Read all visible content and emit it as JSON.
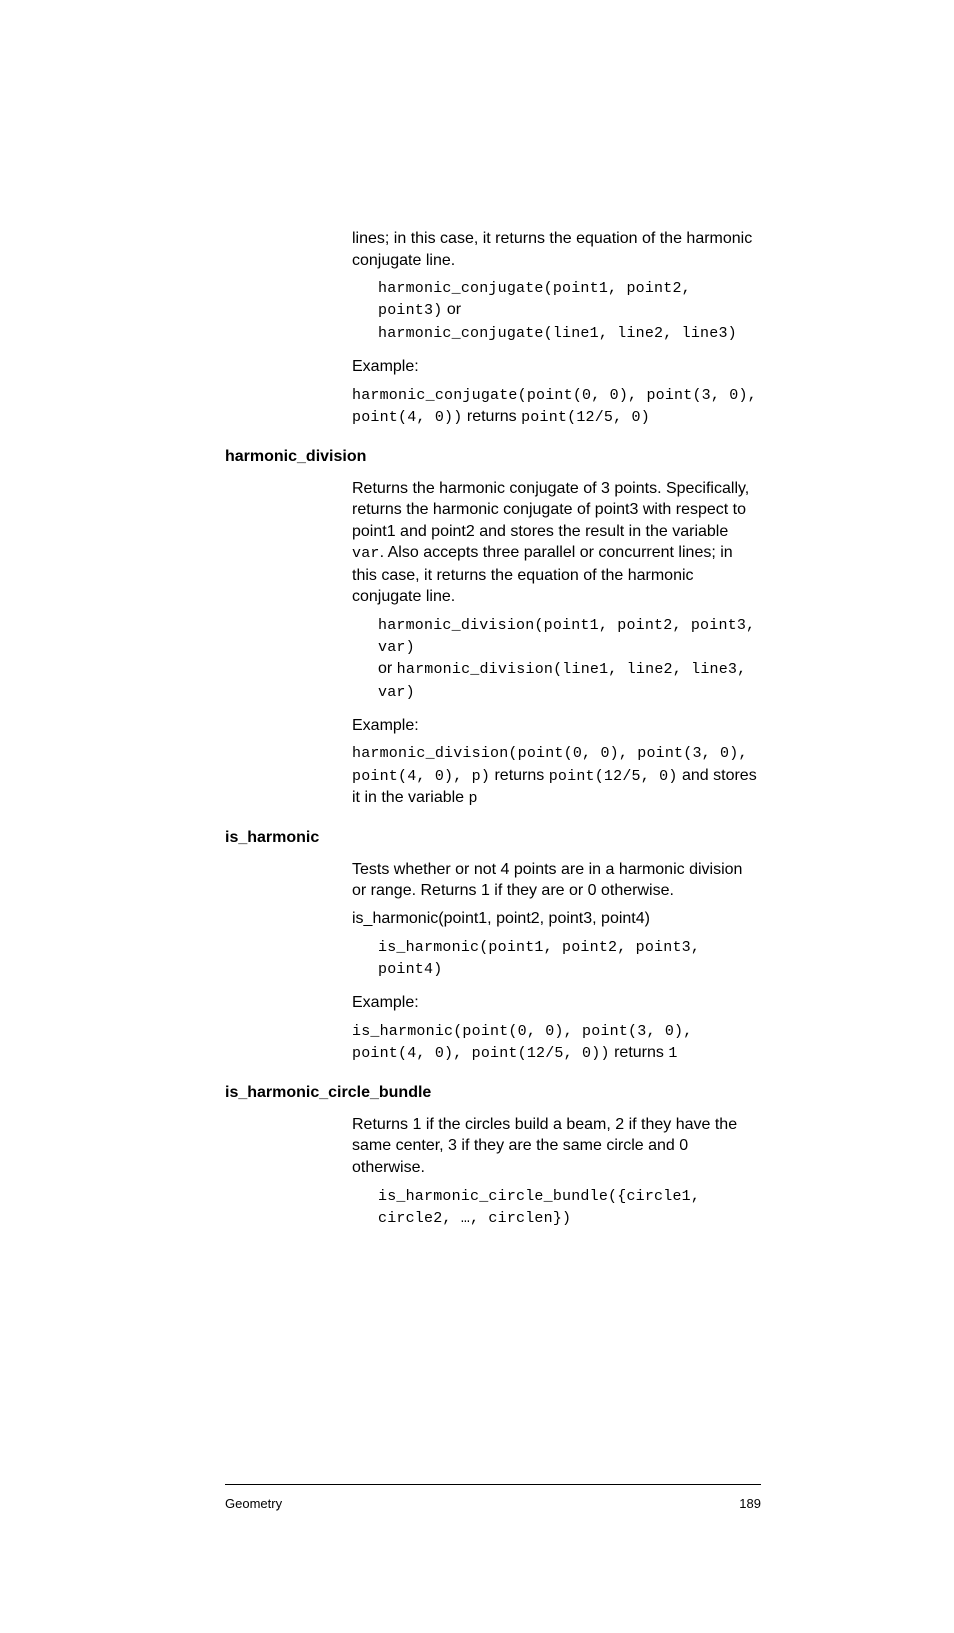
{
  "intro": {
    "p1": "lines; in this case, it returns the equation of the harmonic conjugate line.",
    "syntax_l1": "harmonic_conjugate(point1, point2, point3)",
    "syntax_or": " or ",
    "syntax_l2": "harmonic_conjugate(line1, line2, line3)",
    "example_label": "Example:",
    "ex_l1": "harmonic_conjugate(point(0, 0), point(3, 0), point(4, 0))",
    "ex_returns": " returns ",
    "ex_result": "point(12/5, 0)"
  },
  "harmonic_division": {
    "heading": "harmonic_division",
    "p1a": "Returns the harmonic conjugate of 3 points. Specifically, returns the harmonic conjugate of point3 with respect to point1 and point2 and stores the result in the variable ",
    "p1b_code": "var",
    "p1c": ". Also accepts three parallel or concurrent lines; in this case, it returns the equation of the harmonic conjugate line.",
    "syntax_l1": "harmonic_division(point1, point2, point3, var)",
    "syntax_or": "or ",
    "syntax_l2": "harmonic_division(line1, line2, line3, var)",
    "example_label": "Example:",
    "ex_l1": "harmonic_division(point(0, 0), point(3, 0), point(4, 0), p)",
    "ex_returns": " returns ",
    "ex_result": "point(12/5, 0)",
    "ex_trail": " and stores it in the variable ",
    "ex_trail_code": "p"
  },
  "is_harmonic": {
    "heading": "is_harmonic",
    "p1": "Tests whether or not 4 points are in a harmonic division or range. Returns 1 if they are or 0 otherwise.",
    "usage": "is_harmonic(point1, point2, point3, point4)",
    "syntax": "is_harmonic(point1, point2, point3, point4)",
    "example_label": "Example:",
    "ex_l1": "is_harmonic(point(0, 0), point(3, 0), point(4, 0), point(12/5, 0))",
    "ex_returns": " returns ",
    "ex_result": "1"
  },
  "is_harmonic_circle_bundle": {
    "heading": "is_harmonic_circle_bundle",
    "p1": "Returns 1 if the circles build a beam, 2 if they have the same center, 3 if they are the same circle and 0 otherwise.",
    "syntax": "is_harmonic_circle_bundle({circle1, circle2, …, circlen})"
  },
  "footer": {
    "section": "Geometry",
    "page": "189"
  }
}
